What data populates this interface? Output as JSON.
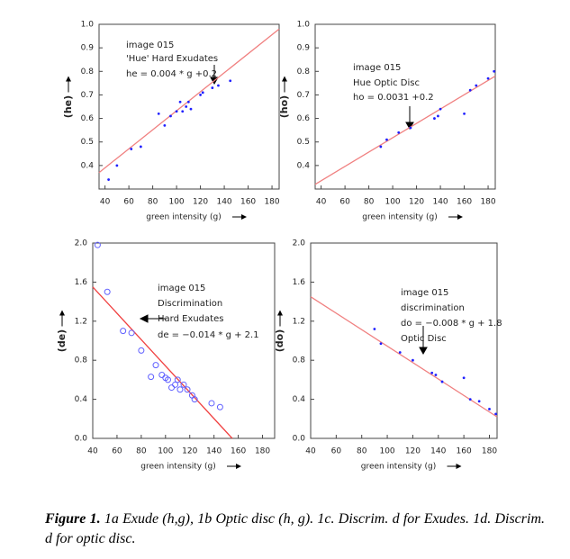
{
  "chart_data": [
    {
      "type": "scatter",
      "x_label": "green intensity (g)",
      "y_label": "(he)",
      "annotations": [
        "image 015",
        "'Hue' Hard Exudates",
        "he = 0.004 * g +0.2"
      ],
      "xlim": [
        35,
        186
      ],
      "xticks": [
        40,
        60,
        80,
        100,
        120,
        140,
        160,
        180
      ],
      "ylim": [
        0.3,
        1.0
      ],
      "yticks": [
        0.4,
        0.5,
        0.6,
        0.7,
        0.8,
        0.9,
        {
          "value": 1,
          "label": "1.0"
        }
      ],
      "marker": "dot",
      "color": "#2020ff",
      "x": [
        43,
        50,
        62,
        70,
        85,
        90,
        95,
        100,
        103,
        105,
        108,
        110,
        112,
        120,
        122,
        130,
        135,
        145
      ],
      "values": [
        0.34,
        0.4,
        0.47,
        0.48,
        0.62,
        0.57,
        0.61,
        0.63,
        0.67,
        0.63,
        0.65,
        0.67,
        0.64,
        0.7,
        0.71,
        0.73,
        0.74,
        0.76
      ],
      "fit_color": "#f08080",
      "fit_x": [
        35,
        186
      ],
      "fit_y": [
        0.37,
        0.98
      ]
    },
    {
      "type": "scatter",
      "x_label": "green intensity (g)",
      "y_label": "(ho)",
      "annotations": [
        "image 015",
        "Hue Optic Disc",
        "ho = 0.0031 +0.2"
      ],
      "xlim": [
        35,
        186
      ],
      "xticks": [
        40,
        60,
        80,
        100,
        120,
        140,
        160,
        180
      ],
      "ylim": [
        0.3,
        1.0
      ],
      "yticks": [
        0.4,
        0.5,
        0.6,
        0.7,
        0.8,
        0.9,
        {
          "value": 1,
          "label": "1.0"
        }
      ],
      "marker": "dot",
      "color": "#2020ff",
      "x": [
        90,
        95,
        105,
        115,
        135,
        138,
        140,
        160,
        165,
        170,
        180,
        185
      ],
      "values": [
        0.48,
        0.51,
        0.54,
        0.56,
        0.6,
        0.61,
        0.64,
        0.62,
        0.72,
        0.74,
        0.77,
        0.8
      ],
      "fit_color": "#f08080",
      "fit_x": [
        35,
        186
      ],
      "fit_y": [
        0.32,
        0.78
      ]
    },
    {
      "type": "scatter",
      "x_label": "green intensity (g)",
      "y_label": "(de)",
      "annotations": [
        "image 015",
        "Discrimination",
        "Hard Exudates",
        "de = −0.014 * g + 2.1"
      ],
      "xlim": [
        40,
        190
      ],
      "xticks": [
        40,
        60,
        80,
        100,
        120,
        140,
        160,
        180
      ],
      "ylim": [
        0,
        2.0
      ],
      "yticks": [
        {
          "value": 0,
          "label": "0.0"
        },
        0.4,
        0.8,
        1.2,
        1.6,
        {
          "value": 2,
          "label": "2.0"
        }
      ],
      "marker": "circle",
      "color": "#6060ff",
      "x": [
        44,
        52,
        65,
        72,
        80,
        88,
        92,
        97,
        100,
        102,
        105,
        108,
        110,
        112,
        115,
        118,
        122,
        124,
        138,
        145
      ],
      "values": [
        1.98,
        1.5,
        1.1,
        1.08,
        0.9,
        0.63,
        0.75,
        0.65,
        0.62,
        0.6,
        0.52,
        0.55,
        0.6,
        0.5,
        0.55,
        0.5,
        0.44,
        0.4,
        0.36,
        0.32
      ],
      "fit_color": "#f04040",
      "fit_x": [
        40,
        155
      ],
      "fit_y": [
        1.55,
        0
      ]
    },
    {
      "type": "scatter",
      "x_label": "green intensity (g)",
      "y_label": "(do)",
      "annotations": [
        "image 015",
        "discrimination",
        "do = −0.008 * g + 1.8",
        "Optic Disc"
      ],
      "xlim": [
        40,
        186
      ],
      "xticks": [
        40,
        60,
        80,
        100,
        120,
        140,
        160,
        180
      ],
      "ylim": [
        0,
        2.0
      ],
      "yticks": [
        {
          "value": 0,
          "label": "0.0"
        },
        0.4,
        0.8,
        1.2,
        1.6,
        {
          "value": 2,
          "label": "2.0"
        }
      ],
      "marker": "dot",
      "color": "#2020ff",
      "x": [
        90,
        95,
        110,
        120,
        135,
        138,
        143,
        160,
        165,
        172,
        180,
        185
      ],
      "values": [
        1.12,
        0.97,
        0.88,
        0.8,
        0.67,
        0.65,
        0.58,
        0.62,
        0.4,
        0.38,
        0.3,
        0.25
      ],
      "fit_color": "#f08080",
      "fit_x": [
        40,
        186
      ],
      "fit_y": [
        1.45,
        0.22
      ]
    }
  ],
  "caption": {
    "label": "Figure 1.",
    "text": " 1a Exude (h,g), 1b Optic disc (h, g). 1c. Discrim. d for Exudes. 1d. Discrim. d for optic disc."
  }
}
